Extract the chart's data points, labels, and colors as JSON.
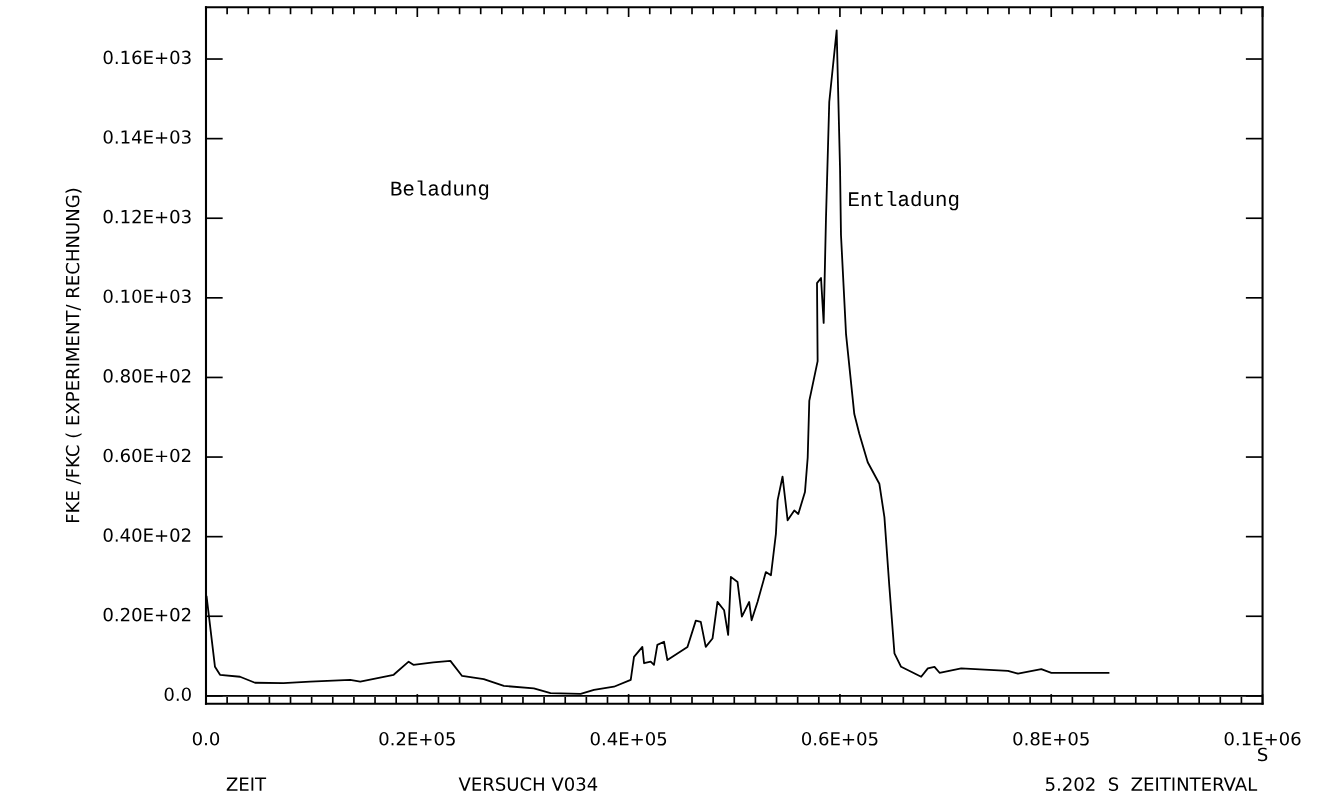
{
  "chart_data": {
    "type": "line",
    "ylabel": "FKE /FKC ( EXPERIMENT/ RECHNUNG)",
    "xlabel": "S",
    "annotations": [
      "Beladung",
      "Entladung",
      "ZEIT",
      "VERSUCH V034",
      "5.202  S  ZEITINTERVAL"
    ],
    "ref_lines": [
      {
        "axis": "y",
        "value": 0,
        "color": "#000000"
      }
    ],
    "series": [
      {
        "color": "#000000",
        "x": [
          60,
          850,
          1330,
          3220,
          4640,
          7330,
          9860,
          13650,
          14600,
          17760,
          19180,
          19630,
          21520,
          23130,
          24240,
          26290,
          28190,
          31030,
          32610,
          35460,
          36720,
          38610,
          40200,
          40510,
          41300,
          41460,
          42090,
          42400,
          42720,
          43350,
          43670,
          45570,
          46360,
          46830,
          47300,
          47940,
          48410,
          49040,
          49420,
          49680,
          50310,
          50720,
          51410,
          51640,
          52200,
          52990,
          53470,
          53940,
          54100,
          54570,
          55050,
          55680,
          56060,
          56690,
          56950,
          57100,
          57890,
          57830,
          58210,
          58460,
          58680,
          58990,
          59690,
          60010,
          60100,
          60580,
          61360,
          61840,
          62630,
          63730,
          64210,
          64680,
          65160,
          65790,
          67690,
          68320,
          68950,
          69430,
          71480,
          75900,
          76850,
          79060,
          80010,
          84750,
          85420
        ],
        "values": [
          24.9,
          7.3,
          5.3,
          4.8,
          3.3,
          3.2,
          3.6,
          4.0,
          3.6,
          5.3,
          8.6,
          7.8,
          8.4,
          8.8,
          5.0,
          4.2,
          2.5,
          1.9,
          0.7,
          0.5,
          1.5,
          2.3,
          4.0,
          9.8,
          12.3,
          8.2,
          8.6,
          7.8,
          12.8,
          13.6,
          9.0,
          12.3,
          18.9,
          18.6,
          12.3,
          14.4,
          23.6,
          21.5,
          15.3,
          29.9,
          28.6,
          19.9,
          23.6,
          19.0,
          23.6,
          31.1,
          30.3,
          40.7,
          49.1,
          55.1,
          44.1,
          46.6,
          45.7,
          51.2,
          59.9,
          74.1,
          84.1,
          103.7,
          105.0,
          93.7,
          120.0,
          149.2,
          167.2,
          132.5,
          115.8,
          90.8,
          70.8,
          65.8,
          58.7,
          53.3,
          44.9,
          27.4,
          10.7,
          7.3,
          4.8,
          6.9,
          7.3,
          5.8,
          6.9,
          6.3,
          5.6,
          6.7,
          5.8,
          5.8,
          5.8
        ]
      }
    ],
    "xlim": [
      0,
      100000
    ],
    "ylim": [
      -2,
      173
    ],
    "xticks": [
      {
        "value": 0,
        "label": "0.0"
      },
      {
        "value": 2000,
        "label": null
      },
      {
        "value": 4000,
        "label": null
      },
      {
        "value": 6000,
        "label": null
      },
      {
        "value": 8000,
        "label": null
      },
      {
        "value": 10000,
        "label": null
      },
      {
        "value": 12000,
        "label": null
      },
      {
        "value": 14000,
        "label": null
      },
      {
        "value": 16000,
        "label": null
      },
      {
        "value": 18000,
        "label": null
      },
      {
        "value": 20000,
        "label": "0.2E+05"
      },
      {
        "value": 22000,
        "label": null
      },
      {
        "value": 24000,
        "label": null
      },
      {
        "value": 26000,
        "label": null
      },
      {
        "value": 28000,
        "label": null
      },
      {
        "value": 30000,
        "label": null
      },
      {
        "value": 32000,
        "label": null
      },
      {
        "value": 34000,
        "label": null
      },
      {
        "value": 36000,
        "label": null
      },
      {
        "value": 38000,
        "label": null
      },
      {
        "value": 40000,
        "label": "0.4E+05"
      },
      {
        "value": 42000,
        "label": null
      },
      {
        "value": 44000,
        "label": null
      },
      {
        "value": 46000,
        "label": null
      },
      {
        "value": 48000,
        "label": null
      },
      {
        "value": 50000,
        "label": null
      },
      {
        "value": 52000,
        "label": null
      },
      {
        "value": 54000,
        "label": null
      },
      {
        "value": 56000,
        "label": null
      },
      {
        "value": 58000,
        "label": null
      },
      {
        "value": 60000,
        "label": "0.6E+05"
      },
      {
        "value": 62000,
        "label": null
      },
      {
        "value": 64000,
        "label": null
      },
      {
        "value": 66000,
        "label": null
      },
      {
        "value": 68000,
        "label": null
      },
      {
        "value": 70000,
        "label": null
      },
      {
        "value": 72000,
        "label": null
      },
      {
        "value": 74000,
        "label": null
      },
      {
        "value": 76000,
        "label": null
      },
      {
        "value": 78000,
        "label": null
      },
      {
        "value": 80000,
        "label": "0.8E+05"
      },
      {
        "value": 82000,
        "label": null
      },
      {
        "value": 84000,
        "label": null
      },
      {
        "value": 86000,
        "label": null
      },
      {
        "value": 88000,
        "label": null
      },
      {
        "value": 90000,
        "label": null
      },
      {
        "value": 92000,
        "label": null
      },
      {
        "value": 94000,
        "label": null
      },
      {
        "value": 96000,
        "label": null
      },
      {
        "value": 98000,
        "label": null
      },
      {
        "value": 100000,
        "label": "0.1E+06"
      }
    ],
    "yticks": [
      {
        "value": 0,
        "label": "0.0"
      },
      {
        "value": 20,
        "label": "0.20E+02"
      },
      {
        "value": 40,
        "label": "0.40E+02"
      },
      {
        "value": 60,
        "label": "0.60E+02"
      },
      {
        "value": 80,
        "label": "0.80E+02"
      },
      {
        "value": 100,
        "label": "0.10E+03"
      },
      {
        "value": 120,
        "label": "0.12E+03"
      },
      {
        "value": 140,
        "label": "0.14E+03"
      },
      {
        "value": 160,
        "label": "0.16E+03"
      }
    ],
    "grid": false,
    "marker": "none",
    "line_style": "solid"
  }
}
